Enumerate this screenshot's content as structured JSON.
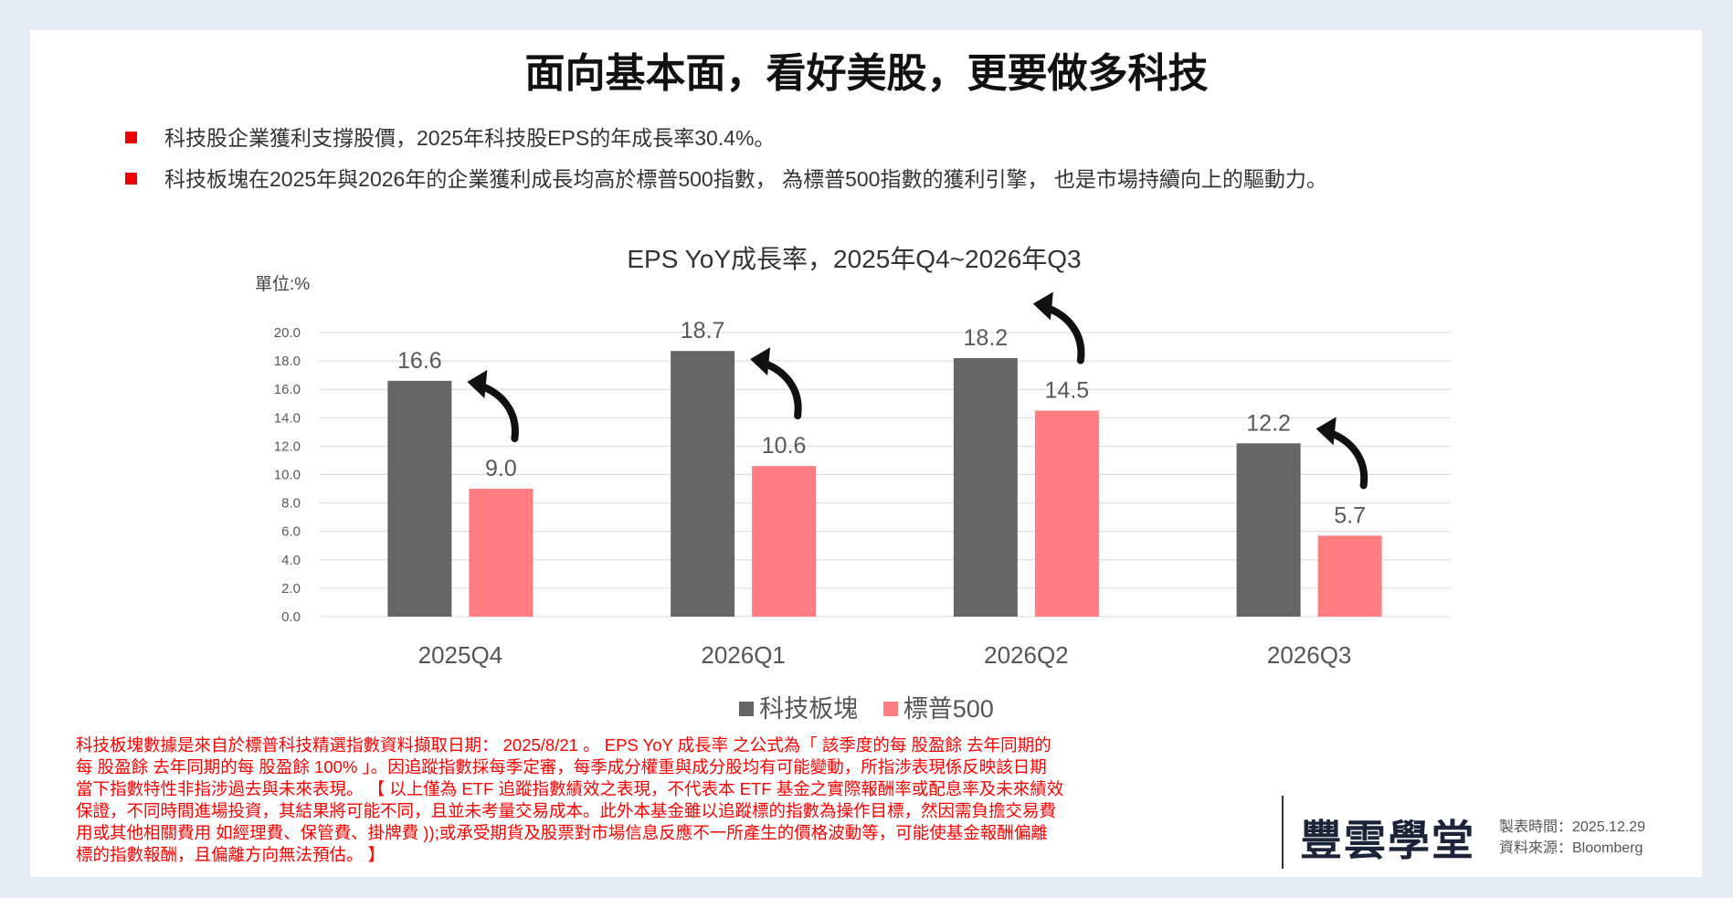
{
  "title": "面向基本面，看好美股，更要做多科技",
  "bullets": [
    "科技股企業獲利支撐股價，2025年科技股EPS的年成長率30.4%。",
    "科技板塊在2025年與2026年的企業獲利成長均高於標普500指數， 為標普500指數的獲利引擎， 也是市場持續向上的驅動力。"
  ],
  "chart_data": {
    "type": "bar",
    "title": "EPS YoY成長率，2025年Q4~2026年Q3",
    "unit_label": "單位:%",
    "categories": [
      "2025Q4",
      "2026Q1",
      "2026Q2",
      "2026Q3"
    ],
    "series": [
      {
        "name": "科技板塊",
        "values": [
          16.6,
          18.7,
          18.2,
          12.2
        ],
        "color": "#666666"
      },
      {
        "name": "標普500",
        "values": [
          9.0,
          10.6,
          14.5,
          5.7
        ],
        "color": "#ff7c80"
      }
    ],
    "ylim": [
      0,
      20
    ],
    "yticks": [
      "0.0",
      "2.0",
      "4.0",
      "6.0",
      "8.0",
      "10.0",
      "12.0",
      "14.0",
      "16.0",
      "18.0",
      "20.0"
    ],
    "grid": true,
    "legend": "bottom",
    "annotations": "curved black arrows pointing upward from each 標普500 bar toward the 科技板塊 bar"
  },
  "footnote": [
    "科技板塊數據是來自於標普科技精選指數資料擷取日期： 2025/8/21 。 EPS YoY 成長率 之公式為「 該季度的每 股盈餘 去年同期的",
    "每 股盈餘 去年同期的每 股盈餘 100% 」。因追蹤指數採每季定審，每季成分權重與成分股均有可能變動，所指涉表現係反映該日期",
    "當下指數特性非指涉過去與未來表現。 【 以上僅為 ETF 追蹤指數績效之表現，不代表本 ETF 基金之實際報酬率或配息率及未來績效",
    "保證，不同時間進場投資，其結果將可能不同，且並未考量交易成本。此外本基金雖以追蹤標的指數為操作目標，然因需負擔交易費",
    "用或其他相關費用 如經理費、保管費、掛牌費 ));或承受期貨及股票對市場信息反應不一所產生的價格波動等，可能使基金報酬偏離",
    "標的指數報酬，且偏離方向無法預估。 】"
  ],
  "logo": "豐雲學堂",
  "meta": {
    "made_time": "製表時間：2025.12.29",
    "source": "資料來源：Bloomberg"
  }
}
